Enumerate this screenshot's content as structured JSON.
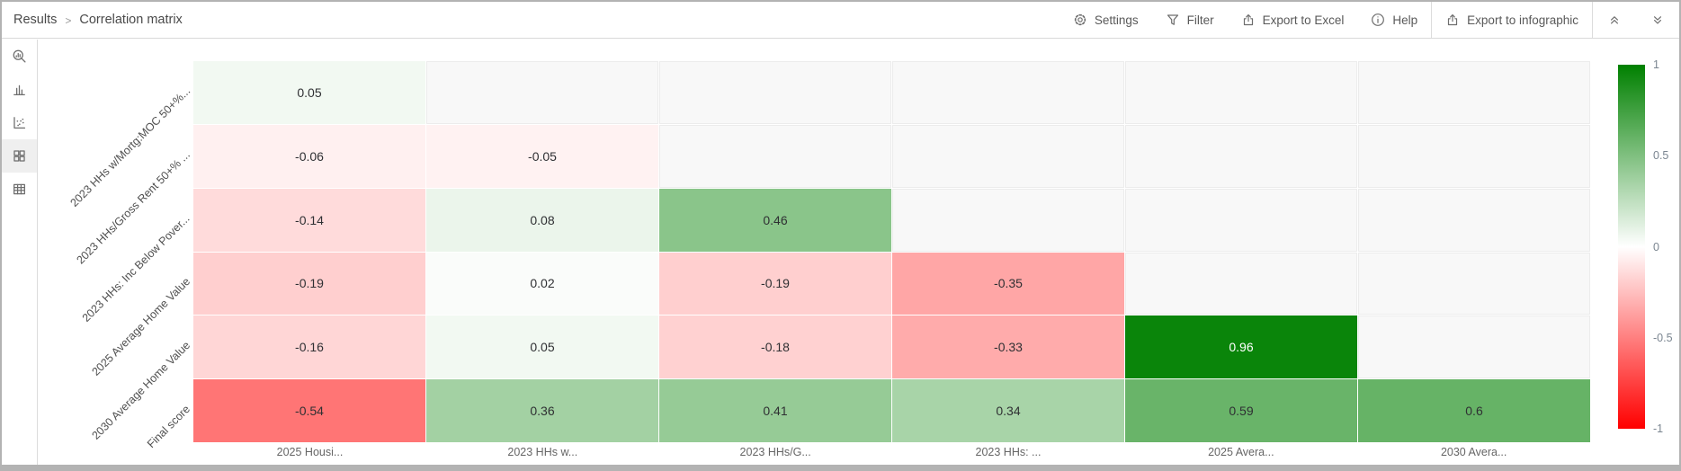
{
  "header": {
    "breadcrumb": [
      "Results",
      "Correlation matrix"
    ],
    "separator": ">",
    "toolbar": [
      {
        "id": "settings",
        "label": "Settings",
        "icon": "gear-icon"
      },
      {
        "id": "filter",
        "label": "Filter",
        "icon": "funnel-icon"
      },
      {
        "id": "export-excel",
        "label": "Export to Excel",
        "icon": "export-icon"
      },
      {
        "id": "help",
        "label": "Help",
        "icon": "info-circle-icon"
      },
      {
        "id": "divider"
      },
      {
        "id": "export-infographic",
        "label": "Export to infographic",
        "icon": "export-icon"
      },
      {
        "id": "divider"
      },
      {
        "id": "collapse-up",
        "label": "",
        "icon": "chevron-double-up-icon"
      },
      {
        "id": "collapse-down",
        "label": "",
        "icon": "chevron-double-down-icon"
      }
    ]
  },
  "sidebar": {
    "items": [
      {
        "id": "search",
        "icon": "search-stats-icon",
        "active": false
      },
      {
        "id": "bars",
        "icon": "bar-chart-icon",
        "active": false
      },
      {
        "id": "scatter",
        "icon": "scatter-plot-icon",
        "active": false
      },
      {
        "id": "matrix",
        "icon": "grid-icon",
        "active": true
      },
      {
        "id": "table",
        "icon": "table-icon",
        "active": false
      }
    ]
  },
  "chart_data": {
    "type": "heatmap",
    "title": "Correlation matrix",
    "rows": [
      "2023 HHs w/Mortg:MOC 50+%...",
      "2023 HHs/Gross Rent 50+% ...",
      "2023 HHs: Inc Below Pover...",
      "2025 Average Home Value",
      "2030 Average Home Value",
      "Final score"
    ],
    "columns": [
      "2025 Housi...",
      "2023 HHs w...",
      "2023 HHs/G...",
      "2023 HHs: ...",
      "2025 Avera...",
      "2030 Avera..."
    ],
    "values": [
      [
        0.05,
        null,
        null,
        null,
        null,
        null
      ],
      [
        -0.06,
        -0.05,
        null,
        null,
        null,
        null
      ],
      [
        -0.14,
        0.08,
        0.46,
        null,
        null,
        null
      ],
      [
        -0.19,
        0.02,
        -0.19,
        -0.35,
        null,
        null
      ],
      [
        -0.16,
        0.05,
        -0.18,
        -0.33,
        0.96,
        null
      ],
      [
        -0.54,
        0.36,
        0.41,
        0.34,
        0.59,
        0.6
      ]
    ],
    "colorscale": {
      "min": -1,
      "max": 1,
      "negative_color": "#ff0000",
      "zero_color": "#ffffff",
      "positive_color": "#008000",
      "empty_cell_color": "#f8f8f8",
      "white_text_threshold": 0.9
    },
    "legend_ticks": [
      "1",
      "0.5",
      "0",
      "-0.5",
      "-1"
    ],
    "legend_position": "right",
    "grid": false
  }
}
